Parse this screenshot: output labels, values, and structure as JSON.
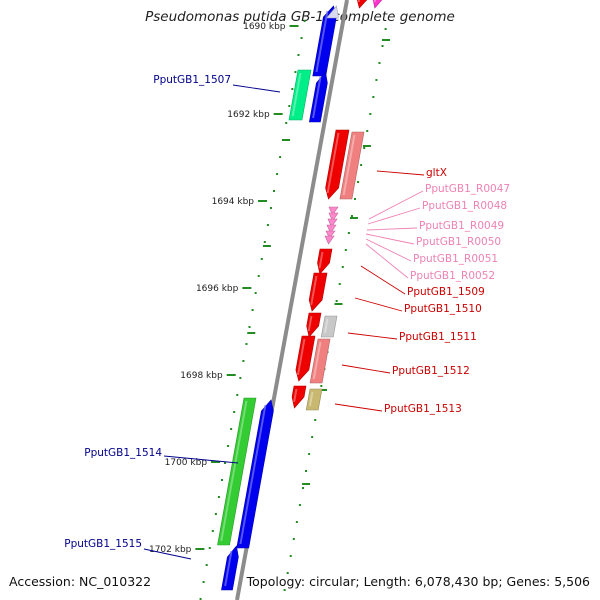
{
  "title": "Pseudomonas putida GB-1, complete genome",
  "footer": {
    "accession": "Accession: NC_010322",
    "summary": "Topology: circular; Length: 6,078,430 bp; Genes: 5,506"
  },
  "colors": {
    "backbone": "#8c8c8c",
    "tick": "#228b22",
    "label_blue": "#00008b",
    "label_red": "#cc0000",
    "label_pink": "#ee82b4"
  },
  "scale_ticks": [
    {
      "label": "1690 kbp"
    },
    {
      "label": "1692 kbp"
    },
    {
      "label": "1694 kbp"
    },
    {
      "label": "1696 kbp"
    },
    {
      "label": "1698 kbp"
    },
    {
      "label": "1700 kbp"
    },
    {
      "label": "1702 kbp"
    }
  ],
  "features": [
    {
      "label": "",
      "color": "#0000ee"
    },
    {
      "label": "",
      "color": "#ff33cc"
    },
    {
      "label": "",
      "color": "#ee0000"
    },
    {
      "label": "PputGB1_1507",
      "color": "#00ee88"
    },
    {
      "label": "",
      "color": "#0000ee"
    },
    {
      "label": "",
      "color": "#0000ee"
    },
    {
      "label": "gltX",
      "color": "#ee0000"
    },
    {
      "label": "",
      "color": "#f08080"
    },
    {
      "label": "PputGB1_R0047",
      "color": "#ff88cc"
    },
    {
      "label": "PputGB1_R0048",
      "color": "#ff88cc"
    },
    {
      "label": "PputGB1_R0049",
      "color": "#ff88cc"
    },
    {
      "label": "PputGB1_R0050",
      "color": "#ff88cc"
    },
    {
      "label": "PputGB1_R0051",
      "color": "#ff88cc"
    },
    {
      "label": "PputGB1_R0052",
      "color": "#ff88cc"
    },
    {
      "label": "PputGB1_1509",
      "color": "#ee0000"
    },
    {
      "label": "PputGB1_1510",
      "color": "#ee0000"
    },
    {
      "label": "",
      "color": "#ee0000"
    },
    {
      "label": "PputGB1_1511",
      "color": "#c8c8c8"
    },
    {
      "label": "",
      "color": "#ee0000"
    },
    {
      "label": "PputGB1_1512",
      "color": "#f08080"
    },
    {
      "label": "",
      "color": "#ee0000"
    },
    {
      "label": "PputGB1_1513",
      "color": "#c8b870"
    },
    {
      "label": "PputGB1_1514",
      "color": "#33cc33"
    },
    {
      "label": "",
      "color": "#0000ee"
    },
    {
      "label": "PputGB1_1515",
      "color": "#0000ee"
    }
  ]
}
